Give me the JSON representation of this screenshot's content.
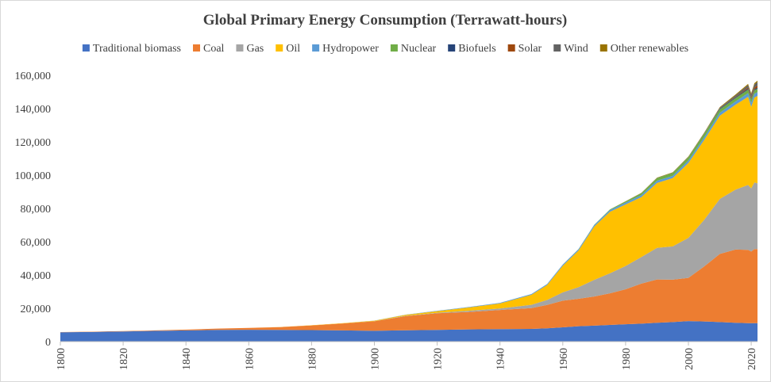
{
  "chart_data": {
    "type": "area",
    "stacked": true,
    "title": "Global Primary Energy Consumption (Terrawatt-hours)",
    "xlabel": "",
    "ylabel": "",
    "xlim": [
      1800,
      2022
    ],
    "ylim": [
      0,
      160000
    ],
    "x_ticks": [
      "1800",
      "1820",
      "1840",
      "1860",
      "1880",
      "1900",
      "1920",
      "1940",
      "1960",
      "1980",
      "2000",
      "2020"
    ],
    "y_ticks": [
      "0",
      "20,000",
      "40,000",
      "60,000",
      "80,000",
      "100,000",
      "120,000",
      "140,000",
      "160,000"
    ],
    "legend_position": "top",
    "grid": false,
    "x": [
      1800,
      1810,
      1820,
      1830,
      1840,
      1850,
      1860,
      1870,
      1880,
      1890,
      1900,
      1910,
      1920,
      1930,
      1940,
      1950,
      1955,
      1960,
      1965,
      1970,
      1975,
      1980,
      1985,
      1990,
      1995,
      2000,
      2005,
      2010,
      2015,
      2019,
      2020,
      2021,
      2022
    ],
    "series": [
      {
        "name": "Traditional biomass",
        "color": "#4472c4",
        "values": [
          5600,
          5800,
          6100,
          6400,
          6700,
          7000,
          7100,
          7000,
          6900,
          6700,
          6500,
          6800,
          7000,
          7300,
          7500,
          7600,
          8000,
          8600,
          9200,
          9600,
          10000,
          10400,
          10800,
          11300,
          11700,
          12300,
          12100,
          11700,
          11300,
          11100,
          11100,
          11100,
          11100
        ]
      },
      {
        "name": "Coal",
        "color": "#ed7d31",
        "values": [
          100,
          150,
          200,
          300,
          500,
          800,
          1100,
          1700,
          2800,
          4200,
          5700,
          8500,
          10000,
          10500,
          11500,
          12500,
          14000,
          16000,
          16500,
          17500,
          19000,
          21000,
          24000,
          26000,
          25500,
          26000,
          33000,
          41000,
          44000,
          44000,
          43000,
          44500,
          44500
        ]
      },
      {
        "name": "Gas",
        "color": "#a5a5a5",
        "values": [
          0,
          0,
          0,
          0,
          0,
          0,
          0,
          0,
          0,
          0,
          50,
          200,
          300,
          700,
          900,
          2000,
          3000,
          5000,
          7000,
          10000,
          12000,
          14000,
          16000,
          19000,
          20000,
          24000,
          28000,
          33000,
          36000,
          39000,
          38000,
          40000,
          39500
        ]
      },
      {
        "name": "Oil",
        "color": "#ffc000",
        "values": [
          0,
          0,
          0,
          0,
          0,
          0,
          0,
          50,
          100,
          200,
          300,
          600,
          1000,
          2000,
          3000,
          6000,
          9000,
          16000,
          22000,
          32000,
          37000,
          37000,
          36000,
          39000,
          41000,
          45000,
          48000,
          50000,
          51000,
          53000,
          49000,
          51000,
          52500
        ]
      },
      {
        "name": "Hydropower",
        "color": "#5b9bd5",
        "values": [
          0,
          0,
          0,
          0,
          0,
          0,
          0,
          0,
          0,
          0,
          50,
          100,
          200,
          300,
          400,
          500,
          600,
          700,
          800,
          900,
          1000,
          1100,
          1200,
          1300,
          1400,
          1500,
          1600,
          1800,
          2000,
          2200,
          2300,
          2300,
          2300
        ]
      },
      {
        "name": "Nuclear",
        "color": "#70ad47",
        "values": [
          0,
          0,
          0,
          0,
          0,
          0,
          0,
          0,
          0,
          0,
          0,
          0,
          0,
          0,
          0,
          0,
          0,
          0,
          100,
          200,
          400,
          700,
          1100,
          1600,
          1800,
          2000,
          2100,
          2100,
          2000,
          2100,
          2000,
          2100,
          2000
        ]
      },
      {
        "name": "Biofuels",
        "color": "#264478",
        "values": [
          0,
          0,
          0,
          0,
          0,
          0,
          0,
          0,
          0,
          0,
          0,
          0,
          0,
          0,
          0,
          0,
          0,
          0,
          0,
          0,
          0,
          50,
          80,
          100,
          100,
          100,
          200,
          400,
          500,
          600,
          550,
          600,
          650
        ]
      },
      {
        "name": "Solar",
        "color": "#9e480e",
        "values": [
          0,
          0,
          0,
          0,
          0,
          0,
          0,
          0,
          0,
          0,
          0,
          0,
          0,
          0,
          0,
          0,
          0,
          0,
          0,
          0,
          0,
          0,
          0,
          0,
          0,
          0,
          0,
          50,
          300,
          700,
          850,
          1000,
          1300
        ]
      },
      {
        "name": "Wind",
        "color": "#636363",
        "values": [
          0,
          0,
          0,
          0,
          0,
          0,
          0,
          0,
          0,
          0,
          0,
          0,
          0,
          0,
          0,
          0,
          0,
          0,
          0,
          0,
          0,
          0,
          0,
          0,
          0,
          50,
          100,
          400,
          800,
          1400,
          1600,
          1850,
          2100
        ]
      },
      {
        "name": "Other renewables",
        "color": "#997300",
        "values": [
          0,
          0,
          0,
          0,
          0,
          0,
          0,
          0,
          0,
          0,
          0,
          0,
          0,
          0,
          0,
          0,
          0,
          0,
          0,
          0,
          0,
          100,
          150,
          200,
          250,
          300,
          350,
          450,
          550,
          700,
          750,
          800,
          850
        ]
      }
    ]
  }
}
